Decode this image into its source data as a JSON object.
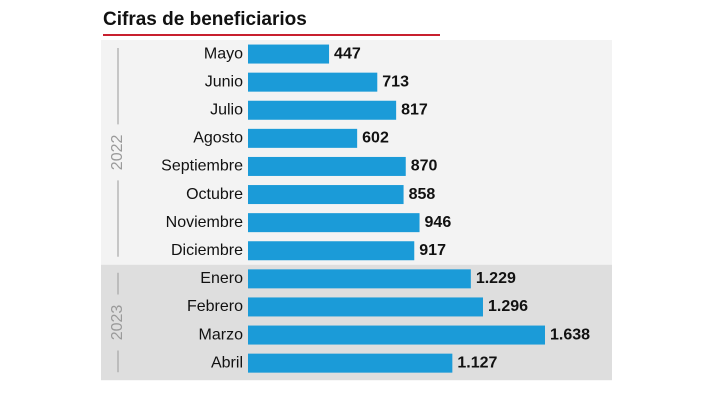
{
  "chart_data": {
    "type": "bar",
    "title": "Cifras de beneficiarios",
    "color": "#1b9bd8",
    "groups": [
      {
        "name": "2022",
        "categories": [
          "Mayo",
          "Junio",
          "Julio",
          "Agosto",
          "Septiembre",
          "Octubre",
          "Noviembre",
          "Diciembre"
        ],
        "values": [
          447,
          713,
          817,
          602,
          870,
          858,
          946,
          917
        ],
        "value_labels": [
          "447",
          "713",
          "817",
          "602",
          "870",
          "858",
          "946",
          "917"
        ]
      },
      {
        "name": "2023",
        "categories": [
          "Enero",
          "Febrero",
          "Marzo",
          "Abril"
        ],
        "values": [
          1229,
          1296,
          1638,
          1127
        ],
        "value_labels": [
          "1.229",
          "1.296",
          "1.638",
          "1.127"
        ]
      }
    ]
  }
}
